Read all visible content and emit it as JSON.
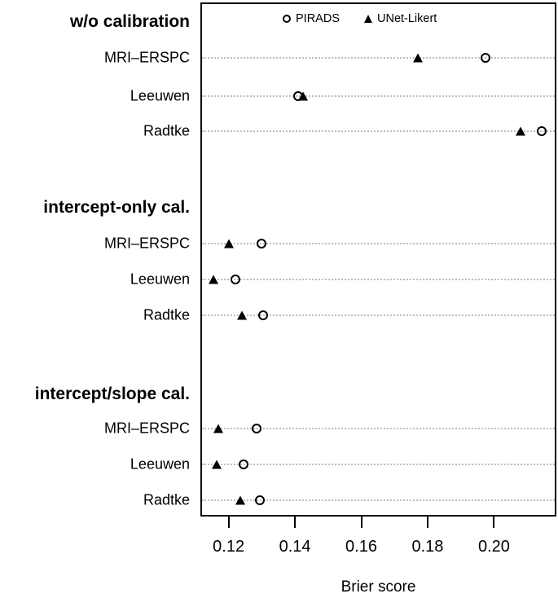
{
  "chart_data": {
    "type": "scatter",
    "variant": "grouped-dot-plot",
    "title": "",
    "xlabel": "Brier score",
    "ylabel": "",
    "xlim": [
      0.1115,
      0.2188
    ],
    "xticks": [
      0.12,
      0.14,
      0.16,
      0.18,
      0.2
    ],
    "xtick_labels": [
      "0.12",
      "0.14",
      "0.16",
      "0.18",
      "0.20"
    ],
    "grid": "dotted horizontal line per data row",
    "legend": {
      "position": "top-center-inside",
      "entries": [
        {
          "label": "PIRADS",
          "marker": "circle-open",
          "key": "pirads"
        },
        {
          "label": "UNet-Likert",
          "marker": "triangle-filled",
          "key": "unet_likert"
        }
      ]
    },
    "groups": [
      {
        "label": "w/o calibration",
        "rows": [
          {
            "label": "MRI–ERSPC",
            "pirads": 0.1975,
            "unet_likert": 0.177
          },
          {
            "label": "Leeuwen",
            "pirads": 0.141,
            "unet_likert": 0.1425
          },
          {
            "label": "Radtke",
            "pirads": 0.2145,
            "unet_likert": 0.208
          }
        ]
      },
      {
        "label": "intercept-only cal.",
        "rows": [
          {
            "label": "MRI–ERSPC",
            "pirads": 0.13,
            "unet_likert": 0.12
          },
          {
            "label": "Leeuwen",
            "pirads": 0.122,
            "unet_likert": 0.1155
          },
          {
            "label": "Radtke",
            "pirads": 0.1305,
            "unet_likert": 0.124
          }
        ]
      },
      {
        "label": "intercept/slope cal.",
        "rows": [
          {
            "label": "MRI–ERSPC",
            "pirads": 0.1285,
            "unet_likert": 0.117
          },
          {
            "label": "Leeuwen",
            "pirads": 0.1245,
            "unet_likert": 0.1165
          },
          {
            "label": "Radtke",
            "pirads": 0.1295,
            "unet_likert": 0.1235
          }
        ]
      }
    ]
  },
  "colors": {
    "marker": "#000000",
    "gridline": "#bdbdbd",
    "axis": "#000000",
    "background": "#ffffff"
  }
}
